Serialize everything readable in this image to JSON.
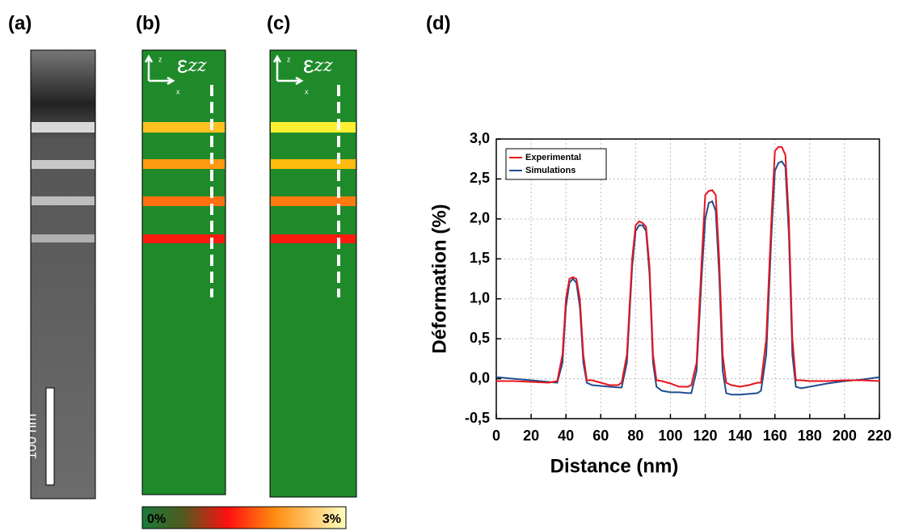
{
  "panels": {
    "a": {
      "label": "(a)",
      "scale_bar": "100 nm"
    },
    "b": {
      "label": "(b)",
      "strain": "ε",
      "component": "zz",
      "axis_z": "z",
      "axis_x": "x"
    },
    "c": {
      "label": "(c)",
      "strain": "ε",
      "component": "zz",
      "axis_z": "z",
      "axis_x": "x"
    },
    "d": {
      "label": "(d)"
    },
    "colorbar": {
      "min": "0%",
      "max": "3%"
    }
  },
  "chart_data": {
    "type": "line",
    "xlabel": "Distance (nm)",
    "ylabel": "Déformation (%)",
    "x": [
      0,
      10,
      20,
      30,
      35,
      38,
      40,
      42,
      44,
      46,
      48,
      50,
      52,
      55,
      60,
      65,
      70,
      72,
      75,
      78,
      80,
      82,
      84,
      86,
      88,
      90,
      92,
      95,
      100,
      105,
      110,
      112,
      115,
      118,
      120,
      122,
      124,
      126,
      128,
      130,
      132,
      135,
      140,
      145,
      150,
      152,
      155,
      158,
      160,
      162,
      164,
      166,
      168,
      170,
      172,
      175,
      180,
      190,
      200,
      210,
      220
    ],
    "series": [
      {
        "name": "Experimental",
        "color": "#e8141c",
        "values": [
          -0.03,
          -0.03,
          -0.04,
          -0.05,
          -0.03,
          0.3,
          1.0,
          1.25,
          1.27,
          1.25,
          1.0,
          0.3,
          -0.02,
          -0.02,
          -0.05,
          -0.08,
          -0.08,
          -0.05,
          0.3,
          1.5,
          1.92,
          1.97,
          1.95,
          1.9,
          1.4,
          0.3,
          -0.02,
          -0.03,
          -0.06,
          -0.1,
          -0.1,
          -0.08,
          0.2,
          1.5,
          2.3,
          2.35,
          2.36,
          2.3,
          1.5,
          0.3,
          -0.05,
          -0.08,
          -0.1,
          -0.08,
          -0.05,
          -0.05,
          0.5,
          2.0,
          2.85,
          2.9,
          2.9,
          2.8,
          2.0,
          0.5,
          -0.02,
          -0.02,
          -0.03,
          -0.03,
          -0.02,
          -0.02,
          -0.03
        ]
      },
      {
        "name": "Simulations",
        "color": "#1f4e8c",
        "values": [
          0.02,
          0.0,
          -0.02,
          -0.04,
          -0.05,
          0.2,
          0.9,
          1.2,
          1.25,
          1.2,
          0.9,
          0.2,
          -0.05,
          -0.08,
          -0.09,
          -0.1,
          -0.11,
          -0.11,
          0.2,
          1.4,
          1.85,
          1.92,
          1.92,
          1.85,
          1.3,
          0.2,
          -0.1,
          -0.15,
          -0.17,
          -0.17,
          -0.18,
          -0.18,
          0.1,
          1.3,
          2.0,
          2.2,
          2.22,
          2.1,
          1.3,
          0.1,
          -0.18,
          -0.2,
          -0.2,
          -0.19,
          -0.18,
          -0.15,
          0.3,
          1.8,
          2.6,
          2.7,
          2.72,
          2.65,
          1.8,
          0.3,
          -0.1,
          -0.12,
          -0.1,
          -0.06,
          -0.03,
          -0.01,
          0.02
        ]
      }
    ],
    "xlim": [
      0,
      220
    ],
    "xticks": [
      0,
      20,
      40,
      60,
      80,
      100,
      120,
      140,
      160,
      180,
      200,
      220
    ],
    "ylim": [
      -0.5,
      3.0
    ],
    "yticks": [
      {
        "value": -0.5,
        "label": "-0,5"
      },
      {
        "value": 0,
        "label": "0,0"
      },
      {
        "value": 0.5,
        "label": "0,5"
      },
      {
        "value": 1,
        "label": "1,0"
      },
      {
        "value": 1.5,
        "label": "1,5"
      },
      {
        "value": 2,
        "label": "2,0"
      },
      {
        "value": 2.5,
        "label": "2,5"
      },
      {
        "value": 3,
        "label": "3,0"
      }
    ],
    "grid": true,
    "legend": "upper left"
  }
}
